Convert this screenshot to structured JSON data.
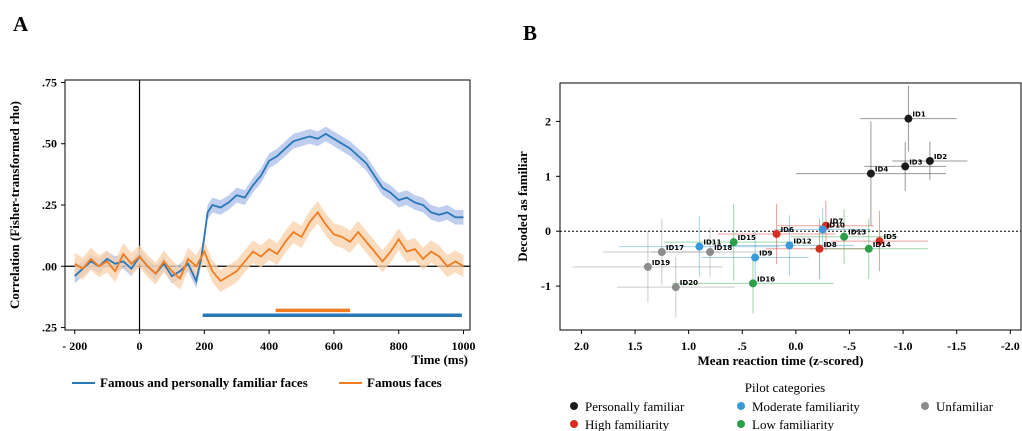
{
  "panel_labels": [
    "A",
    "B"
  ],
  "chart_data": [
    {
      "type": "line",
      "panel": "A",
      "xlabel": "Time (ms)",
      "ylabel": "Correlation (Fisher-transformed rho)",
      "xlim": [
        -230,
        1020
      ],
      "ylim": [
        -0.26,
        0.76
      ],
      "xticks": [
        -200,
        0,
        200,
        400,
        600,
        800,
        1000
      ],
      "xtick_labels": [
        "- 200",
        "0",
        "200",
        "400",
        "600",
        "800",
        "1000"
      ],
      "yticks": [
        -0.25,
        0,
        0.25,
        0.5,
        0.75
      ],
      "ytick_labels": [
        ".25",
        ".00",
        ".25",
        ".50",
        ".75"
      ],
      "legend_position": "bottom",
      "series": [
        {
          "name": "Famous and personally familiar faces",
          "color": "#2a78b8",
          "band_color": "#aabde8",
          "x": [
            -200,
            -175,
            -150,
            -125,
            -100,
            -75,
            -50,
            -25,
            0,
            25,
            50,
            75,
            100,
            125,
            150,
            175,
            190,
            200,
            210,
            225,
            250,
            275,
            300,
            325,
            350,
            375,
            400,
            425,
            450,
            475,
            500,
            525,
            550,
            575,
            600,
            625,
            650,
            675,
            700,
            725,
            750,
            775,
            800,
            825,
            850,
            875,
            900,
            925,
            950,
            975,
            1000
          ],
          "values": [
            -0.04,
            -0.01,
            0.02,
            0.0,
            0.03,
            0.01,
            0.02,
            -0.01,
            0.04,
            0.0,
            -0.03,
            0.01,
            -0.04,
            -0.02,
            0.01,
            -0.06,
            0.03,
            0.12,
            0.22,
            0.25,
            0.24,
            0.26,
            0.29,
            0.28,
            0.33,
            0.37,
            0.43,
            0.45,
            0.48,
            0.51,
            0.52,
            0.53,
            0.52,
            0.54,
            0.52,
            0.5,
            0.48,
            0.45,
            0.42,
            0.37,
            0.32,
            0.3,
            0.27,
            0.28,
            0.26,
            0.25,
            0.22,
            0.21,
            0.22,
            0.2,
            0.2
          ],
          "band": 0.03
        },
        {
          "name": "Famous faces",
          "color": "#f07d22",
          "band_color": "#fbd0a8",
          "x": [
            -200,
            -175,
            -150,
            -125,
            -100,
            -75,
            -50,
            -25,
            0,
            25,
            50,
            75,
            100,
            125,
            150,
            175,
            200,
            225,
            250,
            275,
            300,
            325,
            350,
            375,
            400,
            425,
            450,
            475,
            500,
            525,
            550,
            575,
            600,
            625,
            650,
            675,
            700,
            725,
            750,
            775,
            800,
            825,
            850,
            875,
            900,
            925,
            950,
            975,
            1000
          ],
          "values": [
            0.01,
            -0.01,
            0.03,
            0.0,
            0.02,
            -0.02,
            0.05,
            0.01,
            0.04,
            0.0,
            -0.03,
            0.02,
            -0.02,
            -0.05,
            0.03,
            0.0,
            0.06,
            -0.02,
            -0.06,
            -0.04,
            -0.02,
            0.02,
            0.06,
            0.04,
            0.07,
            0.05,
            0.1,
            0.14,
            0.12,
            0.18,
            0.22,
            0.17,
            0.13,
            0.12,
            0.1,
            0.14,
            0.1,
            0.06,
            0.02,
            0.06,
            0.11,
            0.06,
            0.07,
            0.03,
            0.06,
            0.04,
            0.0,
            0.02,
            0.0
          ],
          "band": 0.045
        }
      ],
      "significance_bars": [
        {
          "series": "Famous faces",
          "color": "#f07d22",
          "x": [
            420,
            650
          ],
          "y": -0.18
        },
        {
          "series": "Famous and personally familiar faces",
          "color": "#2a78b8",
          "x": [
            195,
            995
          ],
          "y": -0.2
        }
      ]
    },
    {
      "type": "scatter",
      "panel": "B",
      "xlabel": "Mean reaction time (z-scored)",
      "ylabel": "Decoded as familiar",
      "xlim": [
        2.2,
        -2.1
      ],
      "ylim": [
        -1.8,
        2.7
      ],
      "x_inverted": true,
      "xticks": [
        2.0,
        1.5,
        1.0,
        0.5,
        0.0,
        -0.5,
        -1.0,
        -1.5,
        -2.0
      ],
      "xtick_labels": [
        "2.0",
        "1.5",
        "1.0",
        ".5",
        "0.0",
        "-.5",
        "-1.0",
        "-1.5",
        "-2.0"
      ],
      "yticks": [
        -1,
        0,
        1,
        2
      ],
      "ytick_labels": [
        "-1",
        "0",
        "1",
        "2"
      ],
      "reference_line_y": 0,
      "legend_title": "Pilot categories",
      "legend_position": "bottom",
      "categories": [
        {
          "name": "Personally familiar",
          "color": "#1a1a1a"
        },
        {
          "name": "Moderate familiarity",
          "color": "#3a9ad9"
        },
        {
          "name": "Unfamiliar",
          "color": "#8c8c8c"
        },
        {
          "name": "High familiarity",
          "color": "#d62d20"
        },
        {
          "name": "Low familiarity",
          "color": "#2ca048"
        }
      ],
      "points": [
        {
          "id": "ID1",
          "x": -1.05,
          "y": 2.05,
          "xerr": 0.45,
          "yerr": 0.6,
          "cat": "Personally familiar"
        },
        {
          "id": "ID2",
          "x": -1.25,
          "y": 1.28,
          "xerr": 0.35,
          "yerr": 0.35,
          "cat": "Personally familiar"
        },
        {
          "id": "ID3",
          "x": -1.02,
          "y": 1.18,
          "xerr": 0.38,
          "yerr": 0.45,
          "cat": "Personally familiar"
        },
        {
          "id": "ID4",
          "x": -0.7,
          "y": 1.05,
          "xerr": 0.7,
          "yerr": 0.95,
          "cat": "Personally familiar"
        },
        {
          "id": "ID5",
          "x": -0.78,
          "y": -0.18,
          "xerr": 0.45,
          "yerr": 0.55,
          "cat": "High familiarity"
        },
        {
          "id": "ID6",
          "x": 0.18,
          "y": -0.05,
          "xerr": 0.55,
          "yerr": 0.55,
          "cat": "High familiarity"
        },
        {
          "id": "ID7",
          "x": -0.28,
          "y": 0.1,
          "xerr": 0.45,
          "yerr": 0.45,
          "cat": "High familiarity"
        },
        {
          "id": "ID8",
          "x": -0.22,
          "y": -0.32,
          "xerr": 0.5,
          "yerr": 0.55,
          "cat": "High familiarity"
        },
        {
          "id": "ID9",
          "x": 0.38,
          "y": -0.48,
          "xerr": 0.5,
          "yerr": 0.5,
          "cat": "Moderate familiarity"
        },
        {
          "id": "ID10",
          "x": -0.25,
          "y": 0.03,
          "xerr": 0.45,
          "yerr": 0.4,
          "cat": "Moderate familiarity"
        },
        {
          "id": "ID11",
          "x": 0.9,
          "y": -0.28,
          "xerr": 0.75,
          "yerr": 0.55,
          "cat": "Moderate familiarity"
        },
        {
          "id": "ID12",
          "x": 0.06,
          "y": -0.26,
          "xerr": 0.6,
          "yerr": 0.55,
          "cat": "Moderate familiarity"
        },
        {
          "id": "ID13",
          "x": -0.45,
          "y": -0.1,
          "xerr": 0.5,
          "yerr": 0.5,
          "cat": "Low familiarity"
        },
        {
          "id": "ID14",
          "x": -0.68,
          "y": -0.32,
          "xerr": 0.55,
          "yerr": 0.55,
          "cat": "Low familiarity"
        },
        {
          "id": "ID15",
          "x": 0.58,
          "y": -0.2,
          "xerr": 0.65,
          "yerr": 0.7,
          "cat": "Low familiarity"
        },
        {
          "id": "ID16",
          "x": 0.4,
          "y": -0.95,
          "xerr": 0.75,
          "yerr": 0.55,
          "cat": "Low familiarity"
        },
        {
          "id": "ID17",
          "x": 1.25,
          "y": -0.38,
          "xerr": 0.55,
          "yerr": 0.6,
          "cat": "Unfamiliar"
        },
        {
          "id": "ID18",
          "x": 0.8,
          "y": -0.38,
          "xerr": 0.55,
          "yerr": 0.45,
          "cat": "Unfamiliar"
        },
        {
          "id": "ID19",
          "x": 1.38,
          "y": -0.65,
          "xerr": 0.7,
          "yerr": 0.65,
          "cat": "Unfamiliar"
        },
        {
          "id": "ID20",
          "x": 1.12,
          "y": -1.02,
          "xerr": 0.55,
          "yerr": 0.55,
          "cat": "Unfamiliar"
        }
      ]
    }
  ]
}
